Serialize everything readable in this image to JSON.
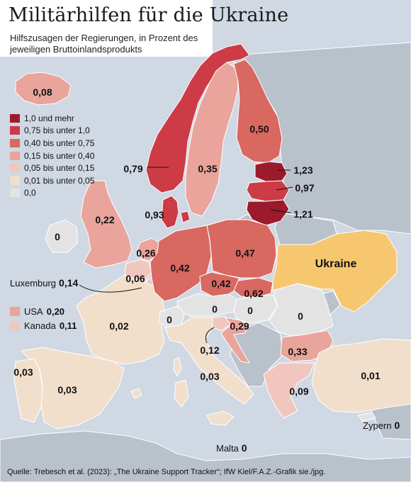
{
  "title": "Militärhilfen für die Ukraine",
  "subtitle": "Hilfszusagen der Regierungen, in Prozent des jeweiligen Bruttoinlandsprodukts",
  "legend": [
    {
      "label": "1,0 und mehr",
      "color": "#9b1a2c"
    },
    {
      "label": "0,75 bis unter 1,0",
      "color": "#cd3b46"
    },
    {
      "label": "0,40 bis unter 0,75",
      "color": "#d86860"
    },
    {
      "label": "0,15 bis unter 0,40",
      "color": "#e9a49c"
    },
    {
      "label": "0,05 bis unter 0,15",
      "color": "#f0c6bf"
    },
    {
      "label": "0,01 bis unter 0,05",
      "color": "#f1dfcc"
    },
    {
      "label": "0,0",
      "color": "#e3e3e3"
    }
  ],
  "others": [
    {
      "name": "USA",
      "value": "0,20",
      "color": "#e9a49c"
    },
    {
      "name": "Kanada",
      "value": "0,11",
      "color": "#f0c6bf"
    }
  ],
  "countries": {
    "iceland": "0,08",
    "norway": "0,79",
    "sweden": "0,35",
    "finland": "0,50",
    "estonia": "1,23",
    "latvia": "0,97",
    "lithuania": "1,21",
    "denmark": "0,93",
    "uk": "0,22",
    "ireland": "0",
    "netherlands": "0,26",
    "belgium": "0,06",
    "luxembourg_name": "Luxemburg",
    "luxembourg": "0,14",
    "germany": "0,42",
    "poland": "0,47",
    "czechia": "0,42",
    "slovakia": "0,62",
    "austria": "0",
    "hungary": "0",
    "romania": "0",
    "france": "0,02",
    "switzerland": "0",
    "slovenia": "0,12",
    "croatia": "0,29",
    "bulgaria": "0,33",
    "greece": "0,09",
    "italy": "0,03",
    "spain": "0,03",
    "portugal": "0,03",
    "turkey": "0,01",
    "ukraine": "Ukraine",
    "cyprus_name": "Zypern",
    "cyprus": "0",
    "malta_name": "Malta",
    "malta": "0"
  },
  "source": "Quelle: Trebesch et al. (2023): „The Ukraine Support Tracker“; IfW Kiel/F.A.Z.-Grafik sie./jpg.",
  "colors": {
    "sea": "#cfd8e3",
    "non_member_land": "#b9c1cb",
    "ukraine": "#f7c76f",
    "border": "#ffffff"
  }
}
